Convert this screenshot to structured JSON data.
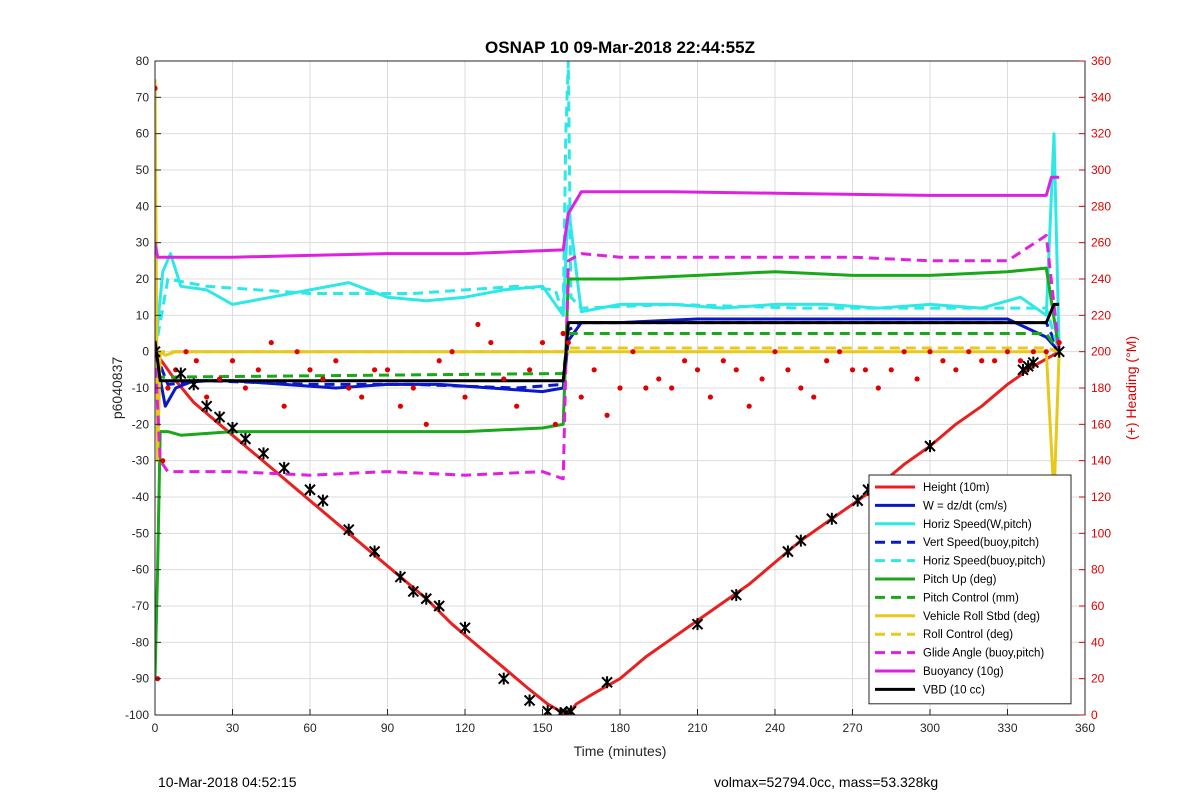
{
  "chart_data": {
    "type": "line",
    "title": "OSNAP 10 09-Mar-2018 22:44:55Z",
    "xlabel": "Time (minutes)",
    "ylabel": "p6040837",
    "y2label": "(+) Heading (°M)",
    "xlim": [
      0,
      360
    ],
    "ylim": [
      -100,
      80
    ],
    "y2lim": [
      0,
      360
    ],
    "xticks": [
      "0",
      "30",
      "60",
      "90",
      "120",
      "150",
      "180",
      "210",
      "240",
      "270",
      "300",
      "330",
      "360"
    ],
    "yticks": [
      "-100",
      "-90",
      "-80",
      "-70",
      "-60",
      "-50",
      "-40",
      "-30",
      "-20",
      "-10",
      "0",
      "10",
      "20",
      "30",
      "40",
      "50",
      "60",
      "70",
      "80"
    ],
    "y2ticks": [
      "0",
      "20",
      "40",
      "60",
      "80",
      "100",
      "120",
      "140",
      "160",
      "180",
      "200",
      "220",
      "240",
      "260",
      "280",
      "300",
      "320",
      "340",
      "360"
    ],
    "grid": true,
    "legend_position": "bottom-right",
    "colors": {
      "height": "#e8201f",
      "w": "#0a18c8",
      "cyan": "#2ee8e8",
      "green": "#18a818",
      "yellow": "#e8c81c",
      "magenta": "#e020e0",
      "black": "#000000",
      "heading": "#e00000"
    },
    "series": [
      {
        "name": "Height (10m)",
        "style": "solid",
        "color": "#e8201f",
        "x": [
          0,
          3,
          8,
          15,
          25,
          35,
          45,
          55,
          65,
          75,
          85,
          95,
          105,
          115,
          125,
          135,
          145,
          152,
          157,
          159,
          161,
          163,
          170,
          180,
          190,
          200,
          210,
          220,
          230,
          240,
          250,
          260,
          270,
          280,
          290,
          300,
          310,
          320,
          330,
          340,
          345,
          350
        ],
        "y": [
          0,
          -3,
          -8,
          -14,
          -20,
          -26,
          -32,
          -38,
          -44,
          -50,
          -56,
          -62,
          -68,
          -75,
          -81,
          -87,
          -93,
          -97,
          -99,
          -99.5,
          -99,
          -97,
          -94,
          -90,
          -84,
          -79,
          -74,
          -69,
          -64,
          -58,
          -52,
          -47,
          -42,
          -37,
          -31,
          -26,
          -20,
          -15,
          -9,
          -4,
          -2,
          0
        ]
      },
      {
        "name": "W = dz/dt (cm/s)",
        "style": "solid",
        "color": "#0a18c8",
        "x": [
          0,
          4,
          8,
          15,
          30,
          50,
          70,
          90,
          110,
          130,
          150,
          158,
          160,
          165,
          180,
          210,
          240,
          270,
          300,
          330,
          345,
          350
        ],
        "y": [
          0,
          -15,
          -10,
          -8,
          -8,
          -9,
          -10,
          -9,
          -9,
          -10,
          -11,
          -10,
          3,
          8,
          8,
          9,
          9,
          9,
          9,
          9,
          4,
          0
        ]
      },
      {
        "name": "Horiz Speed(W,pitch)",
        "style": "solid",
        "color": "#2ee8e8",
        "x": [
          0,
          3,
          6,
          10,
          20,
          30,
          45,
          60,
          75,
          90,
          105,
          120,
          135,
          150,
          158,
          160,
          165,
          180,
          200,
          220,
          240,
          260,
          280,
          300,
          320,
          335,
          345,
          348,
          350
        ],
        "y": [
          0,
          22,
          27,
          18,
          17,
          13,
          15,
          17,
          19,
          15,
          14,
          15,
          17,
          18,
          10,
          40,
          11,
          13,
          13,
          12,
          13,
          13,
          12,
          13,
          12,
          15,
          10,
          60,
          0
        ]
      },
      {
        "name": "Vert Speed(buoy,pitch)",
        "style": "dashed",
        "color": "#0a18c8",
        "x": [
          0,
          5,
          20,
          60,
          100,
          140,
          158,
          160,
          165,
          200,
          250,
          300,
          345,
          350
        ],
        "y": [
          0,
          -9,
          -8,
          -9,
          -9,
          -10,
          -9,
          6,
          8,
          8,
          8,
          8,
          8,
          0
        ]
      },
      {
        "name": "Horiz Speed(buoy,pitch)",
        "style": "dashed",
        "color": "#2ee8e8",
        "x": [
          0,
          5,
          20,
          60,
          100,
          140,
          155,
          158,
          159,
          160,
          161,
          165,
          200,
          250,
          300,
          345,
          350
        ],
        "y": [
          0,
          20,
          18,
          16,
          16,
          18,
          17,
          10,
          60,
          80,
          15,
          12,
          13,
          12,
          12,
          12,
          0
        ]
      },
      {
        "name": "Pitch Up (deg)",
        "style": "solid",
        "color": "#18a818",
        "x": [
          0,
          1,
          2,
          5,
          10,
          30,
          60,
          90,
          120,
          150,
          158,
          160,
          165,
          180,
          210,
          240,
          270,
          300,
          330,
          345,
          350
        ],
        "y": [
          -90,
          -60,
          -22,
          -22,
          -23,
          -22,
          -22,
          -22,
          -22,
          -21,
          -20,
          20,
          20,
          20,
          21,
          22,
          21,
          21,
          22,
          23,
          0
        ]
      },
      {
        "name": "Pitch Control (mm)",
        "style": "dashed",
        "color": "#18a818",
        "x": [
          0,
          5,
          158,
          160,
          165,
          345,
          350
        ],
        "y": [
          -7,
          -7,
          -6,
          5,
          5,
          5,
          0
        ]
      },
      {
        "name": "Vehicle Roll Stbd (deg)",
        "style": "solid",
        "color": "#e8c81c",
        "x": [
          0,
          1,
          2,
          4,
          8,
          15,
          30,
          60,
          90,
          120,
          150,
          158,
          160,
          180,
          210,
          240,
          270,
          300,
          330,
          345,
          348,
          350
        ],
        "y": [
          75,
          -30,
          0,
          -1,
          0,
          0,
          0,
          0,
          0,
          0,
          0,
          0,
          0,
          0,
          0,
          0,
          0,
          0,
          0,
          0,
          -40,
          0
        ]
      },
      {
        "name": "Roll Control (deg)",
        "style": "dashed",
        "color": "#e8c81c",
        "x": [
          0,
          5,
          60,
          120,
          158,
          160,
          200,
          250,
          300,
          345,
          350
        ],
        "y": [
          0,
          0,
          0,
          0,
          0,
          1,
          1,
          1,
          1,
          1,
          0
        ]
      },
      {
        "name": "Glide Angle (buoy,pitch)",
        "style": "dashed",
        "color": "#e020e0",
        "x": [
          0,
          2,
          5,
          15,
          30,
          60,
          90,
          120,
          150,
          158,
          160,
          165,
          180,
          210,
          240,
          270,
          300,
          330,
          345,
          350
        ],
        "y": [
          0,
          -30,
          -33,
          -33,
          -33,
          -34,
          -33,
          -34,
          -33,
          -35,
          25,
          27,
          26,
          26,
          26,
          26,
          25,
          25,
          32,
          0
        ]
      },
      {
        "name": "Buoyancy (10g)",
        "style": "solid",
        "color": "#e020e0",
        "x": [
          0,
          1,
          2,
          30,
          60,
          90,
          120,
          158,
          160,
          165,
          200,
          250,
          300,
          345,
          347,
          350
        ],
        "y": [
          30,
          26,
          26,
          26,
          26.5,
          27,
          27,
          28,
          38,
          44,
          44,
          43.5,
          43,
          43,
          48,
          48
        ]
      },
      {
        "name": "VBD (10 cc)",
        "style": "solid",
        "color": "#000000",
        "x": [
          0,
          2,
          3,
          30,
          60,
          90,
          120,
          158,
          159,
          160,
          200,
          250,
          300,
          345,
          348,
          350
        ],
        "y": [
          3,
          -8,
          -8,
          -8,
          -8,
          -8,
          -8,
          -8,
          -1,
          8,
          8,
          8,
          8,
          8,
          13,
          13
        ]
      },
      {
        "name": "",
        "style": "markers",
        "color": "#e00000",
        "axis": "right",
        "x": [
          0,
          1,
          3,
          5,
          8,
          12,
          16,
          20,
          25,
          30,
          35,
          40,
          45,
          50,
          55,
          60,
          65,
          70,
          75,
          80,
          85,
          90,
          95,
          100,
          105,
          110,
          115,
          120,
          125,
          130,
          135,
          140,
          145,
          150,
          155,
          158,
          160,
          165,
          170,
          175,
          180,
          185,
          190,
          195,
          200,
          205,
          210,
          215,
          220,
          225,
          230,
          235,
          240,
          245,
          250,
          255,
          260,
          265,
          270,
          275,
          280,
          285,
          290,
          295,
          300,
          305,
          310,
          315,
          320,
          325,
          330,
          335,
          340,
          345,
          350
        ],
        "y": [
          345,
          20,
          140,
          180,
          190,
          200,
          195,
          175,
          185,
          195,
          180,
          190,
          205,
          170,
          200,
          190,
          185,
          195,
          180,
          175,
          190,
          190,
          170,
          180,
          160,
          195,
          200,
          175,
          215,
          205,
          185,
          170,
          190,
          205,
          160,
          210,
          205,
          175,
          190,
          165,
          180,
          200,
          180,
          185,
          180,
          195,
          190,
          175,
          195,
          190,
          170,
          185,
          200,
          190,
          180,
          175,
          195,
          200,
          190,
          190,
          180,
          190,
          200,
          185,
          200,
          195,
          190,
          200,
          195,
          195,
          200,
          195,
          200,
          200,
          205
        ]
      },
      {
        "name": "",
        "style": "black-markers",
        "color": "#000000",
        "x": [
          0,
          10,
          15,
          20,
          25,
          30,
          35,
          42,
          50,
          60,
          65,
          75,
          85,
          95,
          100,
          105,
          110,
          120,
          135,
          145,
          152,
          157,
          159,
          161,
          175,
          210,
          225,
          245,
          250,
          262,
          272,
          276,
          300,
          336,
          338,
          340,
          350
        ],
        "y": [
          0,
          -6,
          -9,
          -15,
          -18,
          -21,
          -24,
          -28,
          -32,
          -38,
          -41,
          -49,
          -55,
          -62,
          -66,
          -68,
          -70,
          -76,
          -90,
          -96,
          -99,
          -99.5,
          -99.5,
          -99,
          -91,
          -75,
          -67,
          -55,
          -52,
          -46,
          -41,
          -38,
          -26,
          -5,
          -4,
          -3,
          0
        ]
      }
    ]
  },
  "footer": {
    "left": "10-Mar-2018 04:52:15",
    "right": "volmax=52794.0cc, mass=53.328kg"
  }
}
